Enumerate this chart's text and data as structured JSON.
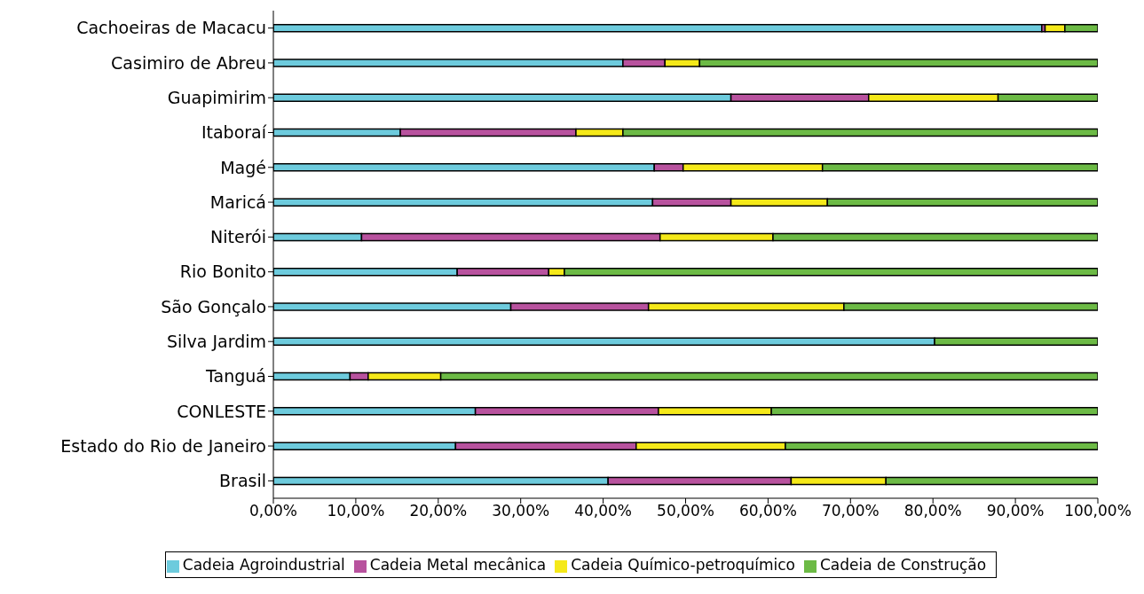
{
  "chart_data": {
    "type": "bar",
    "orientation": "horizontal",
    "stacked": true,
    "categories": [
      "Cachoeiras de Macacu",
      "Casimiro de Abreu",
      "Guapimirim",
      "Itaboraí",
      "Magé",
      "Maricá",
      "Niterói",
      "Rio Bonito",
      "São Gonçalo",
      "Silva Jardim",
      "Tanguá",
      "CONLESTE",
      "Estado do Rio de Janeiro",
      "Brasil"
    ],
    "series": [
      {
        "name": "Cadeia Agroindustrial",
        "color": "#6dcbdd",
        "values": [
          93.2,
          42.4,
          55.5,
          15.4,
          46.2,
          46.0,
          10.7,
          22.3,
          28.8,
          80.2,
          9.3,
          24.5,
          22.1,
          40.6
        ]
      },
      {
        "name": "Cadeia Metal mecânica",
        "color": "#b8529e",
        "values": [
          0.4,
          5.1,
          16.7,
          21.3,
          3.5,
          9.5,
          36.2,
          11.1,
          16.7,
          0,
          2.2,
          22.2,
          21.9,
          22.2
        ]
      },
      {
        "name": "Cadeia Químico-petroquímico",
        "color": "#f5e919",
        "values": [
          2.4,
          4.2,
          15.7,
          5.7,
          16.9,
          11.7,
          13.7,
          1.9,
          23.7,
          0,
          8.8,
          13.7,
          18.1,
          11.5
        ]
      },
      {
        "name": "Cadeia de Construção",
        "color": "#6cba45",
        "values": [
          4.0,
          48.3,
          12.1,
          57.6,
          33.4,
          32.8,
          39.4,
          64.7,
          30.8,
          19.8,
          79.7,
          39.6,
          37.9,
          25.7
        ]
      }
    ],
    "xlim": [
      0,
      100
    ],
    "xticks": [
      {
        "value": 0,
        "label": "0,00%"
      },
      {
        "value": 10,
        "label": "10,00%"
      },
      {
        "value": 20,
        "label": "20,00%"
      },
      {
        "value": 30,
        "label": "30,00%"
      },
      {
        "value": 40,
        "label": "40,00%"
      },
      {
        "value": 50,
        "label": "50,00%"
      },
      {
        "value": 60,
        "label": "60,00%"
      },
      {
        "value": 70,
        "label": "70,00%"
      },
      {
        "value": 80,
        "label": "80,00%"
      },
      {
        "value": 90,
        "label": "90,00%"
      },
      {
        "value": 100,
        "label": "100,00%"
      }
    ],
    "legend": "bottom",
    "grid": false
  }
}
